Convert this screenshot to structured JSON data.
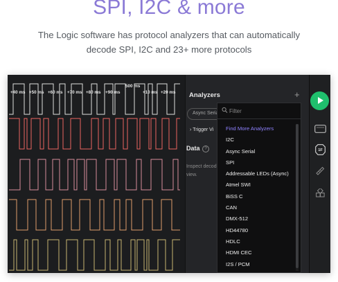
{
  "header": {
    "title": "SPI, I2C & more",
    "subtitle_line1": "The Logic software has protocol analyzers that can automatically",
    "subtitle_line2": "decode  SPI, I2C and 23+ more protocols"
  },
  "waveform": {
    "center_time": "500 ms",
    "ticks": [
      "+40 ms",
      "+50 ms",
      "+60 ms",
      "+70 ms",
      "+80 ms",
      "+90 ms",
      "+10 ms",
      "+20 ms"
    ],
    "channel_colors": [
      "#efefef",
      "#ff6b66",
      "#e897a6",
      "#f1a872",
      "#d8c27a"
    ]
  },
  "analyzers_panel": {
    "title": "Analyzers",
    "add_label": "+",
    "chip_label": "Async Serial",
    "trigger_label": "Trigger Vi",
    "data_title": "Data",
    "help_label": "?",
    "inspect_text": "Inspect decod view."
  },
  "dropdown": {
    "filter_placeholder": "Filter",
    "featured": "Find More Analyzers",
    "items": [
      "I2C",
      "Async Serial",
      "SPI",
      "Addressable LEDs (Async)",
      "Atmel SWI",
      "BiSS C",
      "CAN",
      "DMX-512",
      "HD44780",
      "HDLC",
      "HDMI CEC",
      "I2S / PCM"
    ]
  },
  "rail": {
    "icons": [
      "play-icon",
      "channels-icon",
      "analyzer-icon",
      "measure-icon",
      "extensions-icon"
    ],
    "accent": "#1fbf6d",
    "analyzer_badge": "1F"
  }
}
